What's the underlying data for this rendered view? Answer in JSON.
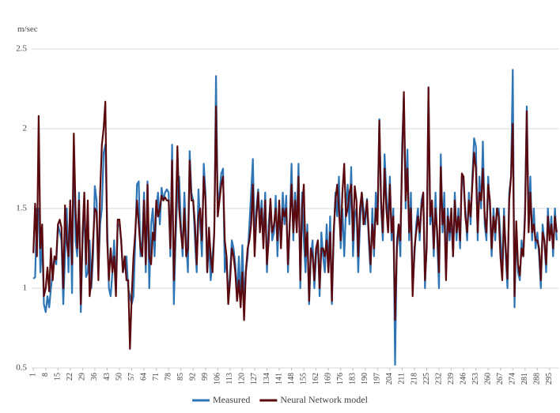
{
  "chart_data": {
    "type": "line",
    "y_axis_label": "m/sec",
    "x": [
      1,
      2,
      3,
      4,
      5,
      6,
      7,
      8,
      9,
      10,
      11,
      12,
      13,
      14,
      15,
      16,
      17,
      18,
      19,
      20,
      21,
      22,
      23,
      24,
      25,
      26,
      27,
      28,
      29,
      30,
      31,
      32,
      33,
      34,
      35,
      36,
      37,
      38,
      39,
      40,
      41,
      42,
      43,
      44,
      45,
      46,
      47,
      48,
      49,
      50,
      51,
      52,
      53,
      54,
      55,
      56,
      57,
      58,
      59,
      60,
      61,
      62,
      63,
      64,
      65,
      66,
      67,
      68,
      69,
      70,
      71,
      72,
      73,
      74,
      75,
      76,
      77,
      78,
      79,
      80,
      81,
      82,
      83,
      84,
      85,
      86,
      87,
      88,
      89,
      90,
      91,
      92,
      93,
      94,
      95,
      96,
      97,
      98,
      99,
      100,
      101,
      102,
      103,
      104,
      105,
      106,
      107,
      108,
      109,
      110,
      111,
      112,
      113,
      114,
      115,
      116,
      117,
      118,
      119,
      120,
      121,
      122,
      123,
      124,
      125,
      126,
      127,
      128,
      129,
      130,
      131,
      132,
      133,
      134,
      135,
      136,
      137,
      138,
      139,
      140,
      141,
      142,
      143,
      144,
      145,
      146,
      147,
      148,
      149,
      150,
      151,
      152,
      153,
      154,
      155,
      156,
      157,
      158,
      159,
      160,
      161,
      162,
      163,
      164,
      165,
      166,
      167,
      168,
      169,
      170,
      171,
      172,
      173,
      174,
      175,
      176,
      177,
      178,
      179,
      180,
      181,
      182,
      183,
      184,
      185,
      186,
      187,
      188,
      189,
      190,
      191,
      192,
      193,
      194,
      195,
      196,
      197,
      198,
      199,
      200,
      201,
      202,
      203,
      204,
      205,
      206,
      207,
      208,
      209,
      210,
      211,
      212,
      213,
      214,
      215,
      216,
      217,
      218,
      219,
      220,
      221,
      222,
      223,
      224,
      225,
      226,
      227,
      228,
      229,
      230,
      231,
      232,
      233,
      234,
      235,
      236,
      237,
      238,
      239,
      240,
      241,
      242,
      243,
      244,
      245,
      246,
      247,
      248,
      249,
      250,
      251,
      252,
      253,
      254,
      255,
      256,
      257,
      258,
      259,
      260,
      261,
      262,
      263,
      264,
      265,
      266,
      267,
      268,
      269,
      270,
      271,
      272,
      273,
      274,
      275,
      276,
      277,
      278,
      279,
      280,
      281,
      282,
      283,
      284,
      285,
      286,
      287,
      288,
      289,
      290,
      291,
      292,
      293,
      294,
      295,
      296,
      297,
      298,
      299
    ],
    "xlim": [
      0,
      300
    ],
    "xticks": [
      1,
      8,
      15,
      22,
      29,
      36,
      43,
      50,
      57,
      64,
      71,
      78,
      85,
      92,
      99,
      106,
      113,
      120,
      127,
      134,
      141,
      148,
      155,
      162,
      169,
      176,
      183,
      190,
      197,
      204,
      211,
      218,
      225,
      232,
      239,
      246,
      253,
      260,
      267,
      274,
      281,
      288,
      295
    ],
    "ylim": [
      0.5,
      2.5
    ],
    "yticks": [
      0.5,
      1,
      1.5,
      2,
      2.5
    ],
    "grid": true,
    "legend": "bottom",
    "series": [
      {
        "name": "Measured",
        "color": "#2e75b6",
        "values": [
          1.06,
          1.07,
          1.5,
          1.5,
          1.1,
          1.3,
          0.9,
          0.85,
          0.95,
          0.88,
          1.0,
          1.1,
          1.2,
          1.15,
          1.4,
          1.35,
          1.3,
          0.9,
          1.2,
          1.5,
          1.1,
          1.55,
          0.97,
          1.9,
          1.3,
          1.2,
          1.6,
          0.85,
          1.3,
          1.5,
          1.07,
          1.1,
          1.3,
          1.0,
          1.2,
          1.64,
          1.55,
          1.1,
          1.4,
          1.5,
          1.85,
          1.9,
          1.4,
          1.0,
          0.95,
          1.1,
          1.3,
          1.0,
          1.4,
          1.4,
          1.3,
          1.1,
          1.15,
          1.2,
          1.0,
          0.95,
          0.9,
          0.95,
          1.3,
          1.65,
          1.67,
          1.2,
          1.3,
          1.6,
          1.1,
          1.67,
          1.0,
          1.4,
          1.5,
          1.2,
          1.5,
          1.6,
          1.4,
          1.63,
          1.55,
          1.6,
          1.62,
          1.6,
          1.2,
          1.9,
          0.9,
          1.3,
          1.6,
          1.7,
          1.4,
          1.2,
          1.6,
          1.3,
          1.1,
          1.86,
          1.6,
          1.55,
          1.3,
          1.1,
          1.62,
          1.4,
          1.2,
          1.78,
          1.6,
          1.1,
          1.3,
          1.05,
          1.2,
          1.35,
          2.33,
          1.5,
          1.6,
          1.72,
          1.75,
          1.1,
          1.2,
          0.92,
          1.1,
          1.3,
          1.25,
          1.15,
          0.95,
          1.2,
          0.9,
          1.27,
          0.92,
          1.1,
          1.2,
          1.4,
          1.6,
          1.81,
          1.3,
          1.5,
          1.62,
          1.4,
          1.55,
          1.3,
          1.6,
          1.1,
          1.4,
          1.55,
          1.3,
          1.35,
          1.58,
          1.2,
          1.5,
          1.3,
          1.6,
          1.4,
          1.58,
          1.1,
          1.4,
          1.78,
          1.3,
          1.6,
          1.4,
          1.78,
          1.0,
          1.6,
          1.3,
          1.1,
          1.4,
          0.9,
          1.2,
          1.3,
          1.0,
          1.2,
          1.3,
          0.95,
          1.35,
          1.2,
          1.1,
          1.4,
          1.1,
          1.45,
          0.9,
          1.3,
          1.6,
          1.45,
          1.7,
          1.25,
          1.5,
          1.2,
          1.5,
          1.65,
          1.4,
          1.76,
          1.2,
          1.45,
          1.5,
          1.1,
          1.4,
          1.6,
          1.5,
          1.4,
          1.56,
          1.3,
          1.1,
          1.5,
          1.2,
          1.6,
          1.45,
          2.06,
          1.5,
          1.3,
          1.84,
          1.6,
          1.4,
          1.7,
          1.3,
          1.5,
          0.52,
          1.3,
          1.4,
          1.2,
          1.9,
          2.2,
          1.5,
          1.87,
          1.3,
          1.6,
          1.0,
          1.2,
          1.4,
          1.5,
          1.3,
          1.55,
          1.6,
          1.0,
          1.3,
          2.25,
          1.4,
          1.5,
          1.2,
          1.6,
          1.3,
          1.0,
          1.84,
          1.35,
          1.6,
          1.1,
          1.5,
          1.3,
          1.45,
          1.2,
          1.6,
          1.3,
          1.5,
          1.25,
          1.7,
          1.65,
          1.5,
          1.3,
          1.6,
          1.4,
          1.7,
          1.94,
          1.89,
          1.3,
          1.7,
          1.5,
          1.92,
          1.4,
          1.3,
          1.7,
          1.5,
          1.2,
          1.5,
          1.3,
          1.5,
          1.5,
          1.33,
          1.1,
          1.5,
          1.2,
          1.0,
          1.6,
          1.7,
          2.37,
          0.88,
          1.4,
          1.1,
          1.05,
          1.3,
          1.2,
          1.5,
          2.14,
          1.4,
          1.7,
          1.3,
          1.5,
          1.25,
          1.35,
          1.2,
          1.0,
          1.4,
          1.3,
          1.1,
          1.5,
          1.3,
          1.45,
          1.2,
          1.5,
          1.3
        ]
      },
      {
        "name": "Neural Network model",
        "color": "#5a0a0e",
        "values": [
          1.22,
          1.53,
          1.2,
          2.08,
          1.25,
          1.4,
          0.95,
          1.0,
          1.13,
          0.98,
          1.25,
          1.05,
          1.2,
          1.18,
          1.4,
          1.43,
          1.38,
          1.0,
          1.52,
          1.3,
          1.2,
          1.55,
          1.15,
          1.97,
          1.5,
          1.25,
          1.55,
          0.9,
          1.35,
          1.6,
          1.15,
          1.55,
          0.95,
          1.05,
          1.3,
          1.5,
          1.48,
          1.05,
          1.6,
          1.9,
          2.0,
          2.17,
          1.3,
          1.05,
          1.25,
          1.1,
          1.2,
          0.95,
          1.43,
          1.43,
          1.3,
          1.1,
          1.2,
          1.05,
          1.05,
          0.62,
          0.95,
          1.2,
          1.35,
          1.55,
          1.4,
          1.25,
          1.2,
          1.55,
          1.15,
          1.65,
          1.2,
          1.15,
          1.35,
          1.3,
          1.55,
          1.45,
          1.5,
          1.58,
          1.55,
          1.57,
          1.55,
          1.55,
          1.25,
          1.8,
          1.05,
          1.4,
          1.89,
          1.5,
          1.35,
          1.25,
          1.5,
          1.2,
          1.25,
          1.8,
          1.55,
          1.55,
          1.4,
          1.15,
          1.45,
          1.5,
          1.3,
          1.7,
          1.55,
          1.1,
          1.38,
          1.2,
          1.1,
          1.35,
          2.14,
          1.45,
          1.55,
          1.65,
          1.7,
          1.3,
          1.2,
          0.9,
          1.05,
          1.25,
          1.2,
          1.1,
          0.92,
          1.05,
          0.88,
          1.1,
          0.8,
          1.1,
          1.25,
          1.3,
          1.4,
          1.65,
          1.2,
          1.45,
          1.6,
          1.35,
          1.5,
          1.25,
          1.55,
          1.15,
          1.3,
          1.56,
          1.35,
          1.4,
          1.5,
          1.3,
          1.55,
          1.25,
          1.5,
          1.45,
          1.5,
          1.15,
          1.4,
          1.65,
          1.35,
          1.55,
          1.35,
          1.7,
          1.05,
          1.5,
          1.65,
          1.2,
          1.35,
          0.92,
          1.25,
          1.2,
          1.05,
          1.25,
          1.3,
          1.0,
          1.25,
          1.25,
          1.2,
          1.3,
          1.1,
          1.35,
          0.92,
          1.35,
          1.55,
          1.65,
          1.5,
          1.3,
          1.6,
          1.78,
          1.45,
          1.5,
          1.6,
          1.65,
          1.3,
          1.64,
          1.55,
          1.2,
          1.5,
          1.6,
          1.4,
          1.45,
          1.55,
          1.35,
          1.15,
          1.4,
          1.25,
          1.5,
          1.4,
          2.05,
          1.55,
          1.35,
          1.75,
          1.5,
          1.35,
          1.65,
          1.35,
          1.45,
          0.8,
          1.25,
          1.4,
          1.3,
          1.8,
          2.23,
          1.55,
          1.75,
          1.35,
          1.5,
          0.95,
          1.25,
          1.35,
          1.45,
          1.35,
          1.5,
          1.6,
          1.05,
          1.25,
          2.26,
          1.45,
          1.55,
          1.25,
          1.5,
          1.35,
          1.1,
          1.76,
          1.4,
          1.5,
          1.05,
          1.45,
          1.35,
          1.5,
          1.2,
          1.55,
          1.35,
          1.45,
          1.3,
          1.72,
          1.7,
          1.45,
          1.35,
          1.55,
          1.45,
          1.65,
          1.85,
          1.75,
          1.35,
          1.6,
          1.55,
          1.75,
          1.45,
          1.35,
          1.65,
          1.55,
          1.25,
          1.45,
          1.35,
          1.5,
          1.45,
          1.2,
          1.05,
          1.45,
          1.25,
          1.06,
          1.55,
          1.7,
          2.03,
          0.95,
          1.42,
          1.15,
          1.08,
          1.25,
          1.2,
          1.45,
          2.11,
          1.35,
          1.6,
          1.35,
          1.4,
          1.3,
          1.3,
          1.25,
          1.05,
          1.35,
          1.3,
          1.15,
          1.45,
          1.3,
          1.4,
          1.25,
          1.45,
          1.35
        ]
      }
    ]
  }
}
